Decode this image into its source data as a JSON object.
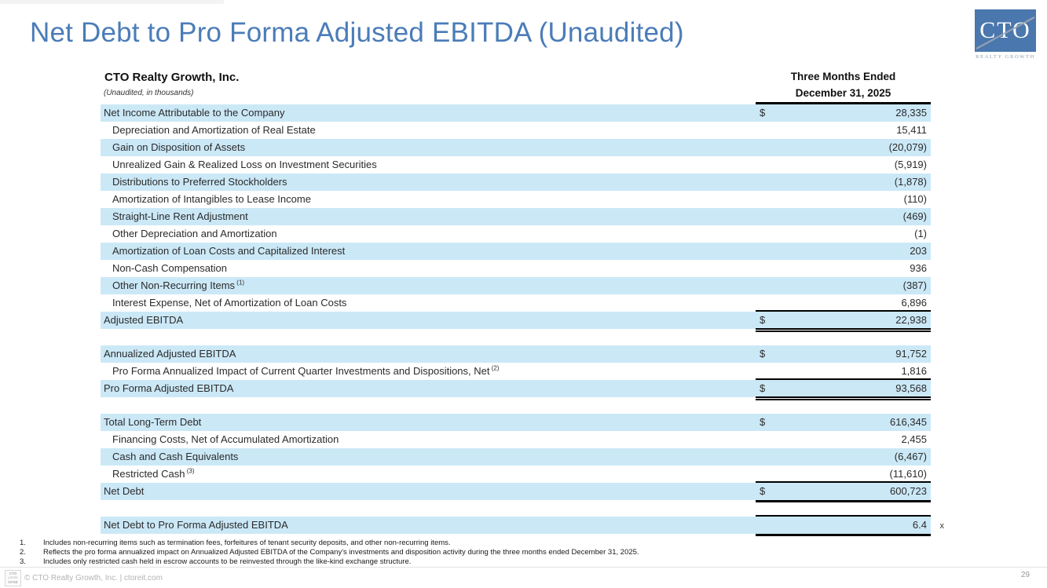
{
  "page": {
    "title": "Net Debt to Pro Forma Adjusted EBITDA (Unaudited)",
    "page_number": "29"
  },
  "logo": {
    "text": "CTO",
    "subtext": "REALTY GROWTH"
  },
  "nyse_badge": {
    "l1": "CTO",
    "l2": "LISTED",
    "l3": "NYSE"
  },
  "colors": {
    "title_blue": "#4b7cb8",
    "row_highlight_blue": "#cbe8f7",
    "logo_blue": "#4a77ad",
    "rule_black": "#000000"
  },
  "table": {
    "company": "CTO Realty Growth, Inc.",
    "subtitle": "(Unaudited, in thousands)",
    "period_line1": "Three Months Ended",
    "period_line2": "December 31, 2025",
    "rows": [
      {
        "label": "Net Income Attributable to the Company",
        "indent": false,
        "shade": "blue",
        "dollar": "$",
        "value": "28,335",
        "border": "none"
      },
      {
        "label": "Depreciation and Amortization of Real Estate",
        "indent": true,
        "shade": "white",
        "dollar": "",
        "value": "15,411",
        "border": "none"
      },
      {
        "label": "Gain on Disposition of Assets",
        "indent": true,
        "shade": "blue",
        "dollar": "",
        "value": "(20,079)",
        "border": "none"
      },
      {
        "label": "Unrealized Gain & Realized Loss on Investment Securities",
        "indent": true,
        "shade": "white",
        "dollar": "",
        "value": "(5,919)",
        "border": "none"
      },
      {
        "label": "Distributions to Preferred Stockholders",
        "indent": true,
        "shade": "blue",
        "dollar": "",
        "value": "(1,878)",
        "border": "none"
      },
      {
        "label": "Amortization of Intangibles to Lease Income",
        "indent": true,
        "shade": "white",
        "dollar": "",
        "value": "(110)",
        "border": "none"
      },
      {
        "label": "Straight-Line Rent Adjustment",
        "indent": true,
        "shade": "blue",
        "dollar": "",
        "value": "(469)",
        "border": "none"
      },
      {
        "label": "Other Depreciation and Amortization",
        "indent": true,
        "shade": "white",
        "dollar": "",
        "value": "(1)",
        "border": "none"
      },
      {
        "label": "Amortization of Loan Costs and Capitalized Interest",
        "indent": true,
        "shade": "blue",
        "dollar": "",
        "value": "203",
        "border": "none"
      },
      {
        "label": "Non-Cash Compensation",
        "indent": true,
        "shade": "white",
        "dollar": "",
        "value": "936",
        "border": "none"
      },
      {
        "label": "Other Non-Recurring Items",
        "sup": "(1)",
        "indent": true,
        "shade": "blue",
        "dollar": "",
        "value": "(387)",
        "border": "none"
      },
      {
        "label": "Interest Expense, Net of Amortization of Loan Costs",
        "indent": true,
        "shade": "white",
        "dollar": "",
        "value": "6,896",
        "border": "none"
      },
      {
        "label": "Adjusted EBITDA",
        "indent": false,
        "shade": "blue",
        "dollar": "$",
        "value": "22,938",
        "border": "top-double"
      },
      {
        "label": "Annualized Adjusted EBITDA",
        "indent": false,
        "shade": "blue",
        "dollar": "$",
        "value": "91,752",
        "border": "none",
        "gap_before": true
      },
      {
        "label": "Pro Forma Annualized Impact of Current Quarter Investments and Dispositions, Net",
        "sup": "(2)",
        "indent": true,
        "shade": "white",
        "dollar": "",
        "value": "1,816",
        "border": "none"
      },
      {
        "label": "Pro Forma Adjusted EBITDA",
        "indent": false,
        "shade": "blue",
        "dollar": "$",
        "value": "93,568",
        "border": "top-double"
      },
      {
        "label": "Total Long-Term Debt",
        "indent": false,
        "shade": "blue",
        "dollar": "$",
        "value": "616,345",
        "border": "none",
        "gap_before": true
      },
      {
        "label": "Financing Costs, Net of Accumulated Amortization",
        "indent": true,
        "shade": "white",
        "dollar": "",
        "value": "2,455",
        "border": "none"
      },
      {
        "label": "Cash and Cash Equivalents",
        "indent": true,
        "shade": "blue",
        "dollar": "",
        "value": "(6,467)",
        "border": "none"
      },
      {
        "label": "Restricted Cash",
        "sup": "(3)",
        "indent": true,
        "shade": "white",
        "dollar": "",
        "value": "(11,610)",
        "border": "none"
      },
      {
        "label": "Net Debt",
        "indent": false,
        "shade": "blue",
        "dollar": "$",
        "value": "600,723",
        "border": "top-thick"
      },
      {
        "label": "Net Debt to Pro Forma Adjusted EBITDA",
        "indent": false,
        "shade": "blue",
        "dollar": "",
        "value": "6.4",
        "suffix": "x",
        "border": "top-thick",
        "gap_before": true
      }
    ]
  },
  "footnotes": [
    {
      "num": "1.",
      "text": "Includes non-recurring items such as termination fees, forfeitures of tenant security deposits, and other non-recurring items."
    },
    {
      "num": "2.",
      "text": "Reflects the pro forma annualized impact on Annualized Adjusted EBITDA of the Company's investments and disposition activity during the three months ended December 31, 2025."
    },
    {
      "num": "3.",
      "text": "Includes only restricted cash held in escrow accounts to be reinvested through the like-kind exchange structure."
    }
  ],
  "footer": {
    "copyright": "© CTO Realty Growth, Inc. | ctoreit.com"
  }
}
